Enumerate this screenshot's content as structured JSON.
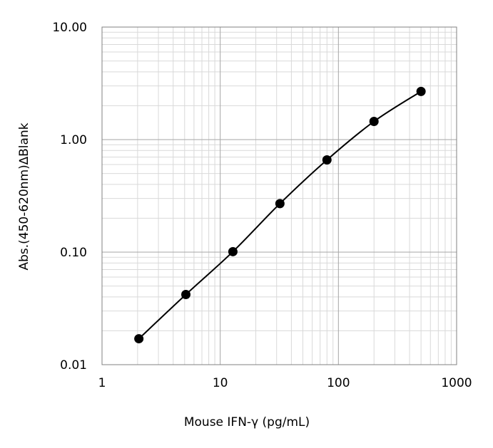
{
  "chart_data": {
    "type": "scatter",
    "title": "",
    "xlabel": "Mouse IFN-γ (pg/mL)",
    "ylabel": "Abs.(450-620nm)∆Blank",
    "x_scale": "log",
    "y_scale": "log",
    "xlim": [
      1,
      1000
    ],
    "ylim": [
      0.01,
      10
    ],
    "x_ticks": [
      1,
      10,
      100,
      1000
    ],
    "x_tick_labels": [
      "1",
      "10",
      "100",
      "1000"
    ],
    "y_ticks": [
      0.01,
      0.1,
      1,
      10
    ],
    "y_tick_labels": [
      "0.01",
      "0.10",
      "1.00",
      "10.00"
    ],
    "grid": true,
    "legend": "none",
    "series": [
      {
        "x": [
          2.05,
          5.12,
          12.8,
          32.0,
          80.0,
          200.0,
          500.0
        ],
        "y": [
          0.017,
          0.042,
          0.101,
          0.27,
          0.66,
          1.45,
          2.68
        ],
        "line": "smooth",
        "marker": "circle",
        "color": "#000000"
      }
    ]
  }
}
